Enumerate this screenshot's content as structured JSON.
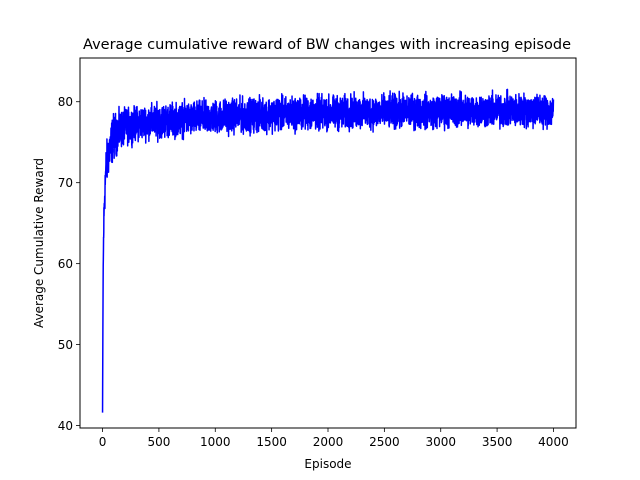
{
  "chart_data": {
    "type": "line",
    "title": "Average cumulative reward of BW changes with increasing episode",
    "xlabel": "Episode",
    "ylabel": "Average Cumulative Reward",
    "xlim": [
      -200,
      4200
    ],
    "ylim": [
      39.7,
      85.4
    ],
    "xticks": [
      0,
      500,
      1000,
      1500,
      2000,
      2500,
      3000,
      3500,
      4000
    ],
    "yticks": [
      40,
      50,
      60,
      70,
      80
    ],
    "grid": false,
    "legend": "none",
    "series": [
      {
        "color": "#0000ff",
        "x": [
          0,
          5,
          10,
          15,
          20,
          25,
          30,
          40,
          50,
          60,
          70,
          80,
          90,
          100,
          120,
          140,
          160,
          180,
          200,
          250,
          300,
          400,
          500,
          600,
          700,
          800,
          900,
          1000,
          1100,
          1200,
          1300,
          1400,
          1500,
          1600,
          1700,
          1800,
          1900,
          2000,
          2100,
          2200,
          2300,
          2400,
          2500,
          2600,
          2700,
          2800,
          2900,
          3000,
          3100,
          3200,
          3300,
          3400,
          3500,
          3600,
          3700,
          3800,
          3900,
          4000
        ],
        "y": [
          41.6,
          58,
          64,
          67,
          69,
          70.5,
          71.5,
          72.5,
          73.5,
          74,
          74.5,
          75,
          75.4,
          75.7,
          76,
          76.3,
          76.5,
          76.7,
          76.9,
          77.1,
          77.3,
          77.5,
          77.6,
          77.7,
          77.8,
          77.9,
          78,
          78.1,
          78.2,
          78.3,
          78.3,
          78.4,
          78.5,
          78.5,
          78.5,
          78.6,
          78.6,
          78.6,
          78.6,
          78.7,
          78.7,
          78.7,
          78.7,
          78.8,
          78.8,
          78.8,
          78.8,
          78.8,
          78.9,
          78.9,
          78.9,
          78.9,
          78.9,
          78.9,
          78.9,
          78.9,
          78.9,
          78.9
        ],
        "band": [
          0,
          2,
          3,
          3.5,
          3.5,
          3.5,
          3.5,
          3.5,
          3.5,
          3.5,
          3.5,
          3.5,
          3.5,
          3.5,
          3.2,
          3,
          2.9,
          2.8,
          2.7,
          2.6,
          2.6,
          2.6,
          2.6,
          2.6,
          2.6,
          2.6,
          2.6,
          2.6,
          2.6,
          2.6,
          2.6,
          2.6,
          2.6,
          2.6,
          2.6,
          2.6,
          2.6,
          2.6,
          2.6,
          2.6,
          2.6,
          2.6,
          2.6,
          2.6,
          2.6,
          2.6,
          2.6,
          2.6,
          2.6,
          2.6,
          2.6,
          2.6,
          2.6,
          2.6,
          2.6,
          2.6,
          2.6,
          2.6
        ]
      }
    ]
  }
}
